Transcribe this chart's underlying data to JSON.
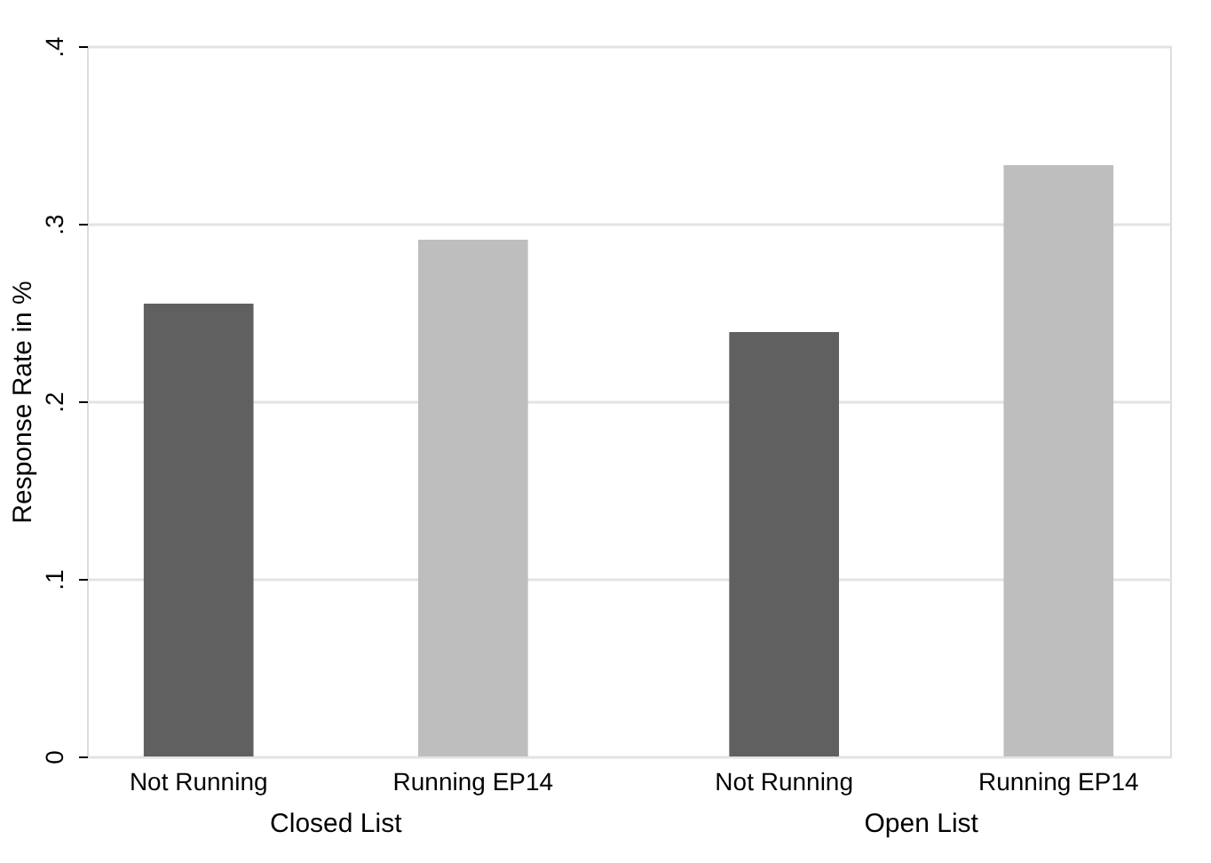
{
  "chart_data": {
    "type": "bar",
    "ylabel": "Response Rate in %",
    "categories": [
      "Closed List",
      "Open List"
    ],
    "series": [
      {
        "name": "Not Running",
        "color": "#606060",
        "values": [
          0.255,
          0.239
        ]
      },
      {
        "name": "Running EP14",
        "color": "#bebebe",
        "values": [
          0.291,
          0.333
        ]
      }
    ],
    "ylim": [
      0,
      0.4
    ],
    "yticks": [
      0,
      {
        "value": 0.1,
        "label": ".1"
      },
      {
        "value": 0.2,
        "label": ".2"
      },
      {
        "value": 0.3,
        "label": ".3"
      },
      {
        "value": 0.4,
        "label": ".4"
      }
    ],
    "grid": "y"
  }
}
